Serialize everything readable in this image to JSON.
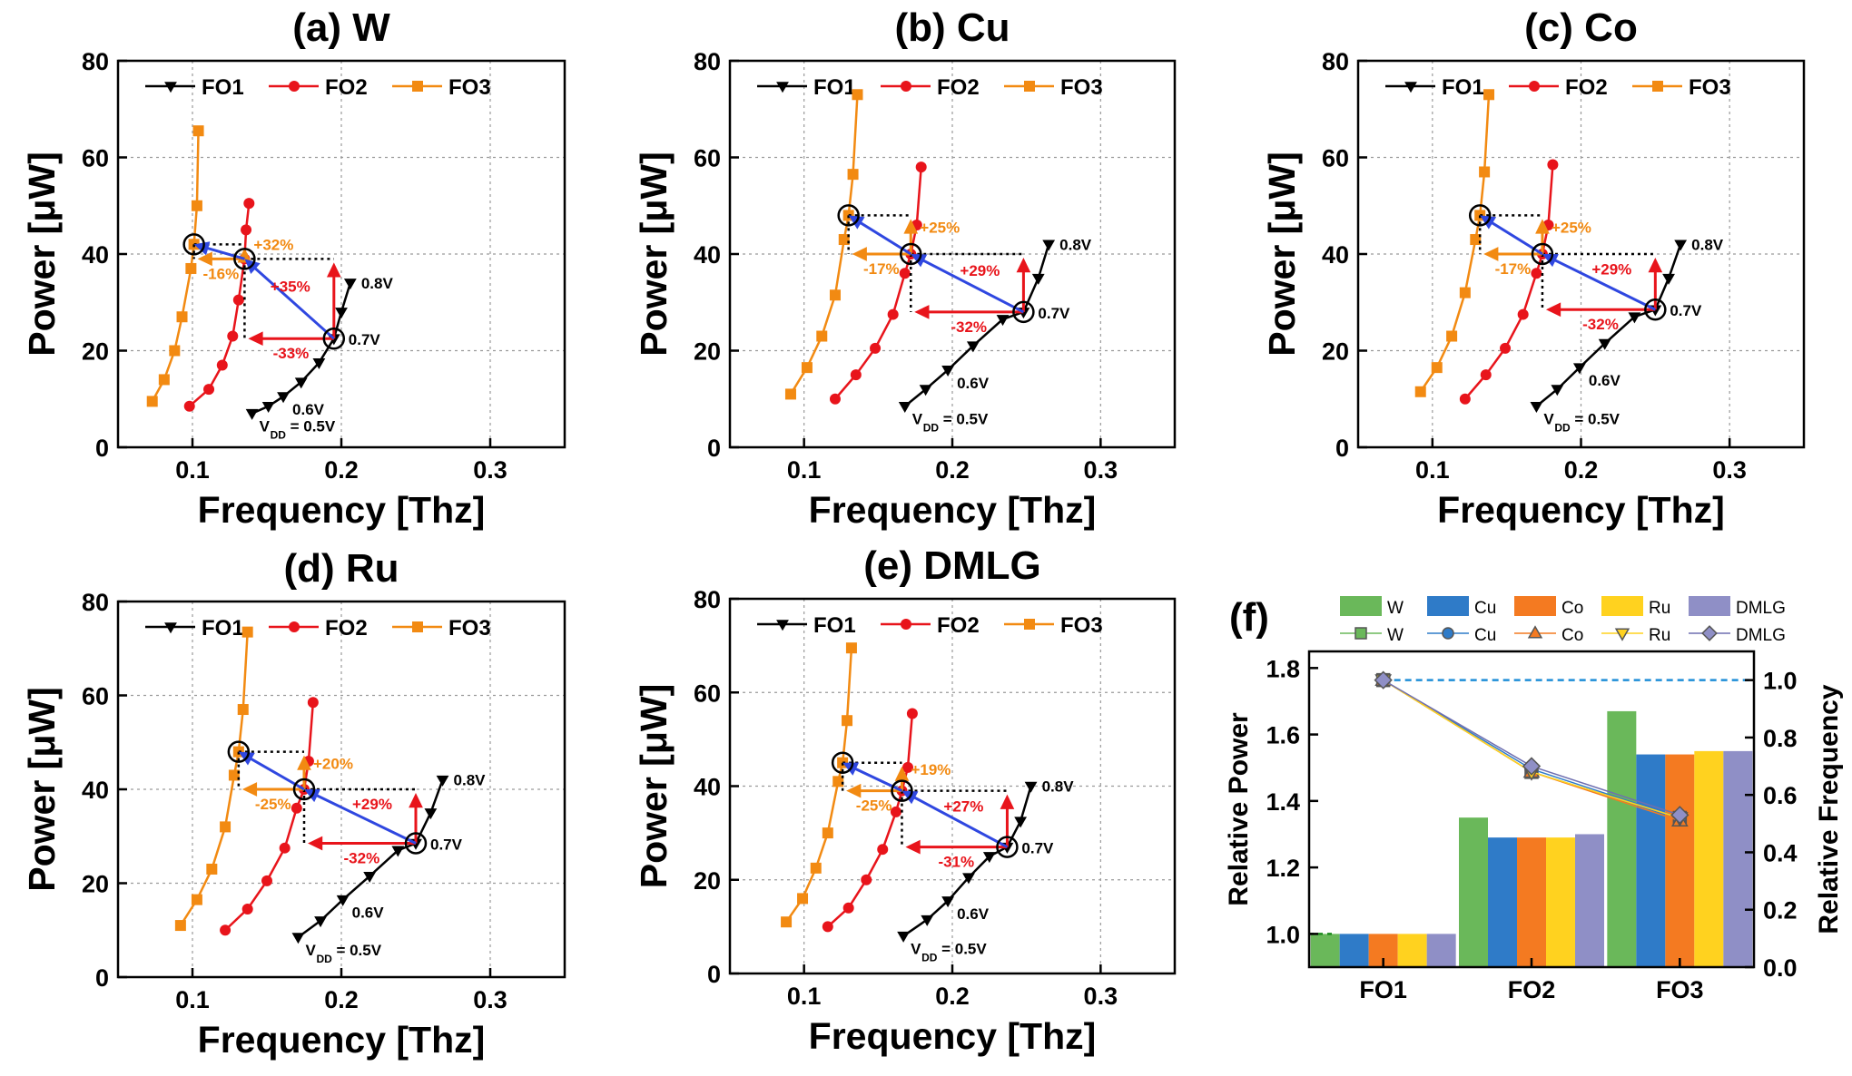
{
  "chart_data": [
    {
      "panel": "a",
      "type": "line",
      "title": "(a) W",
      "xlabel": "Frequency [Thz]",
      "ylabel": "Power [μW]",
      "xlim": [
        0.05,
        0.35
      ],
      "ylim": [
        0,
        80
      ],
      "xticks": [
        "0.1",
        "0.2",
        "0.3"
      ],
      "yticks": [
        "0",
        "20",
        "40",
        "60",
        "80"
      ],
      "grid": true,
      "legend": "top",
      "series": [
        {
          "name": "FO1",
          "color": "#000000",
          "marker": "triangle-down",
          "x": [
            0.14,
            0.151,
            0.161,
            0.173,
            0.185,
            0.195,
            0.2,
            0.206
          ],
          "y": [
            7.0,
            8.5,
            10.5,
            13.5,
            17.5,
            22.5,
            28.0,
            34.0
          ]
        },
        {
          "name": "FO2",
          "color": "#e8141b",
          "marker": "circle",
          "x": [
            0.098,
            0.111,
            0.12,
            0.127,
            0.131,
            0.135,
            0.136,
            0.138
          ],
          "y": [
            8.5,
            12.0,
            17.0,
            23.0,
            30.5,
            39.0,
            45.0,
            50.5
          ]
        },
        {
          "name": "FO3",
          "color": "#f28a12",
          "marker": "square",
          "x": [
            0.073,
            0.081,
            0.088,
            0.093,
            0.099,
            0.101,
            0.103,
            0.104
          ],
          "y": [
            9.5,
            14.0,
            20.0,
            27.0,
            37.0,
            42.0,
            50.0,
            65.5
          ]
        }
      ],
      "vdd_labels": [
        "V",
        "DD",
        " = 0.5V",
        "0.6V",
        "0.7V",
        "0.8V"
      ],
      "annotations": [
        {
          "text": "+32%",
          "color": "#f28a12"
        },
        {
          "text": "+35%",
          "color": "#e8141b"
        },
        {
          "text": "-16%",
          "color": "#f28a12"
        },
        {
          "text": "-33%",
          "color": "#e8141b"
        }
      ]
    },
    {
      "panel": "b",
      "type": "line",
      "title": "(b) Cu",
      "xlabel": "Frequency [Thz]",
      "ylabel": "Power [μW]",
      "xlim": [
        0.05,
        0.35
      ],
      "ylim": [
        0,
        80
      ],
      "xticks": [
        "0.1",
        "0.2",
        "0.3"
      ],
      "yticks": [
        "0",
        "20",
        "40",
        "60",
        "80"
      ],
      "grid": true,
      "legend": "top",
      "series": [
        {
          "name": "FO1",
          "color": "#000000",
          "marker": "triangle-down",
          "x": [
            0.168,
            0.182,
            0.197,
            0.214,
            0.234,
            0.248,
            0.258,
            0.265
          ],
          "y": [
            8.5,
            12.0,
            16.0,
            21.0,
            26.5,
            28.0,
            35.0,
            42.0
          ]
        },
        {
          "name": "FO2",
          "color": "#e8141b",
          "marker": "circle",
          "x": [
            0.121,
            0.135,
            0.148,
            0.16,
            0.168,
            0.172,
            0.176,
            0.179
          ],
          "y": [
            10.0,
            15.0,
            20.5,
            27.5,
            36.0,
            40.0,
            46.0,
            58.0
          ]
        },
        {
          "name": "FO3",
          "color": "#f28a12",
          "marker": "square",
          "x": [
            0.091,
            0.102,
            0.112,
            0.121,
            0.127,
            0.13,
            0.133,
            0.136
          ],
          "y": [
            11.0,
            16.5,
            23.0,
            31.5,
            43.0,
            48.0,
            56.5,
            73.0
          ]
        }
      ],
      "vdd_labels": [
        "V",
        "DD",
        " = 0.5V",
        "0.6V",
        "0.7V",
        "0.8V"
      ],
      "annotations": [
        {
          "text": "+25%",
          "color": "#f28a12"
        },
        {
          "text": "+29%",
          "color": "#e8141b"
        },
        {
          "text": "-17%",
          "color": "#f28a12"
        },
        {
          "text": "-32%",
          "color": "#e8141b"
        }
      ]
    },
    {
      "panel": "c",
      "type": "line",
      "title": "(c) Co",
      "xlabel": "Frequency [Thz]",
      "ylabel": "Power [μW]",
      "xlim": [
        0.05,
        0.35
      ],
      "ylim": [
        0,
        80
      ],
      "xticks": [
        "0.1",
        "0.2",
        "0.3"
      ],
      "yticks": [
        "0",
        "20",
        "40",
        "60",
        "80"
      ],
      "grid": true,
      "legend": "top",
      "series": [
        {
          "name": "FO1",
          "color": "#000000",
          "marker": "triangle-down",
          "x": [
            0.17,
            0.184,
            0.199,
            0.216,
            0.236,
            0.25,
            0.259,
            0.267
          ],
          "y": [
            8.5,
            12.0,
            16.5,
            21.5,
            27.0,
            28.5,
            35.0,
            42.0
          ]
        },
        {
          "name": "FO2",
          "color": "#e8141b",
          "marker": "circle",
          "x": [
            0.122,
            0.136,
            0.149,
            0.161,
            0.17,
            0.174,
            0.178,
            0.181
          ],
          "y": [
            10.0,
            15.0,
            20.5,
            27.5,
            36.0,
            40.0,
            46.0,
            58.5
          ]
        },
        {
          "name": "FO3",
          "color": "#f28a12",
          "marker": "square",
          "x": [
            0.092,
            0.103,
            0.113,
            0.122,
            0.129,
            0.132,
            0.135,
            0.138
          ],
          "y": [
            11.5,
            16.5,
            23.0,
            32.0,
            43.0,
            48.0,
            57.0,
            73.0
          ]
        }
      ],
      "vdd_labels": [
        "V",
        "DD",
        " = 0.5V",
        "0.6V",
        "0.7V",
        "0.8V"
      ],
      "annotations": [
        {
          "text": "+25%",
          "color": "#f28a12"
        },
        {
          "text": "+29%",
          "color": "#e8141b"
        },
        {
          "text": "-17%",
          "color": "#f28a12"
        },
        {
          "text": "-32%",
          "color": "#e8141b"
        }
      ]
    },
    {
      "panel": "d",
      "type": "line",
      "title": "(d) Ru",
      "xlabel": "Frequency [Thz]",
      "ylabel": "Power [μW]",
      "xlim": [
        0.05,
        0.35
      ],
      "ylim": [
        0,
        80
      ],
      "xticks": [
        "0.1",
        "0.2",
        "0.3"
      ],
      "yticks": [
        "0",
        "20",
        "40",
        "60",
        "80"
      ],
      "grid": true,
      "legend": "top",
      "series": [
        {
          "name": "FO1",
          "color": "#000000",
          "marker": "triangle-down",
          "x": [
            0.171,
            0.186,
            0.201,
            0.219,
            0.238,
            0.25,
            0.26,
            0.268
          ],
          "y": [
            8.5,
            12.0,
            16.5,
            21.5,
            27.0,
            28.5,
            35.0,
            42.0
          ]
        },
        {
          "name": "FO2",
          "color": "#e8141b",
          "marker": "circle",
          "x": [
            0.122,
            0.137,
            0.15,
            0.162,
            0.17,
            0.175,
            0.178,
            0.181
          ],
          "y": [
            10.0,
            14.5,
            20.5,
            27.5,
            36.0,
            40.0,
            46.0,
            58.5
          ]
        },
        {
          "name": "FO3",
          "color": "#f28a12",
          "marker": "square",
          "x": [
            0.092,
            0.103,
            0.113,
            0.122,
            0.128,
            0.131,
            0.134,
            0.137
          ],
          "y": [
            11.0,
            16.5,
            23.0,
            32.0,
            43.0,
            48.0,
            57.0,
            73.5
          ]
        }
      ],
      "vdd_labels": [
        "V",
        "DD",
        " = 0.5V",
        "0.6V",
        "0.7V",
        "0.8V"
      ],
      "annotations": [
        {
          "text": "+20%",
          "color": "#f28a12"
        },
        {
          "text": "+29%",
          "color": "#e8141b"
        },
        {
          "text": "-25%",
          "color": "#f28a12"
        },
        {
          "text": "-32%",
          "color": "#e8141b"
        }
      ]
    },
    {
      "panel": "e",
      "type": "line",
      "title": "(e) DMLG",
      "xlabel": "Frequency [Thz]",
      "ylabel": "Power [μW]",
      "xlim": [
        0.05,
        0.35
      ],
      "ylim": [
        0,
        80
      ],
      "xticks": [
        "0.1",
        "0.2",
        "0.3"
      ],
      "yticks": [
        "0",
        "20",
        "40",
        "60",
        "80"
      ],
      "grid": true,
      "legend": "top",
      "series": [
        {
          "name": "FO1",
          "color": "#000000",
          "marker": "triangle-down",
          "x": [
            0.167,
            0.183,
            0.197,
            0.211,
            0.225,
            0.237,
            0.246,
            0.253
          ],
          "y": [
            8.0,
            11.5,
            15.5,
            20.5,
            25.0,
            27.0,
            32.5,
            40.0
          ]
        },
        {
          "name": "FO2",
          "color": "#e8141b",
          "marker": "circle",
          "x": [
            0.116,
            0.13,
            0.142,
            0.153,
            0.162,
            0.166,
            0.17,
            0.173
          ],
          "y": [
            10.0,
            14.0,
            20.0,
            26.5,
            34.5,
            39.0,
            44.0,
            55.5
          ]
        },
        {
          "name": "FO3",
          "color": "#f28a12",
          "marker": "square",
          "x": [
            0.088,
            0.099,
            0.108,
            0.116,
            0.123,
            0.126,
            0.129,
            0.132
          ],
          "y": [
            11.0,
            16.0,
            22.5,
            30.0,
            41.0,
            45.0,
            54.0,
            69.5
          ]
        }
      ],
      "vdd_labels": [
        "V",
        "DD",
        " = 0.5V",
        "0.6V",
        "0.7V",
        "0.8V"
      ],
      "annotations": [
        {
          "text": "+19%",
          "color": "#f28a12"
        },
        {
          "text": "+27%",
          "color": "#e8141b"
        },
        {
          "text": "-25%",
          "color": "#f28a12"
        },
        {
          "text": "-31%",
          "color": "#e8141b"
        }
      ]
    },
    {
      "panel": "f",
      "type": "bar",
      "title": "(f)",
      "ylabel": "Relative Power",
      "y2label": "Relative Frequency",
      "categories": [
        "FO1",
        "FO2",
        "FO3"
      ],
      "ylim": [
        0.9,
        1.85
      ],
      "y2lim": [
        0.0,
        1.1
      ],
      "yticks": [
        "1.0",
        "1.2",
        "1.4",
        "1.6",
        "1.8"
      ],
      "y2ticks": [
        "0.0",
        "0.2",
        "0.4",
        "0.6",
        "0.8",
        "1.0"
      ],
      "legend": "top",
      "series": [
        {
          "name": "W",
          "color": "#6ab85a",
          "marker": "square",
          "power": [
            1.0,
            1.35,
            1.67
          ],
          "frequency": [
            1.0,
            0.68,
            0.52
          ]
        },
        {
          "name": "Cu",
          "color": "#2f7bc8",
          "marker": "circle",
          "power": [
            1.0,
            1.29,
            1.54
          ],
          "frequency": [
            1.0,
            0.69,
            0.52
          ]
        },
        {
          "name": "Co",
          "color": "#f47a21",
          "marker": "triangle-up",
          "power": [
            1.0,
            1.29,
            1.54
          ],
          "frequency": [
            1.0,
            0.68,
            0.51
          ]
        },
        {
          "name": "Ru",
          "color": "#ffd21f",
          "marker": "triangle-down",
          "power": [
            1.0,
            1.29,
            1.55
          ],
          "frequency": [
            1.0,
            0.68,
            0.52
          ]
        },
        {
          "name": "DMLG",
          "color": "#8f8fc6",
          "marker": "diamond",
          "power": [
            1.0,
            1.3,
            1.55
          ],
          "frequency": [
            1.0,
            0.7,
            0.53
          ]
        }
      ]
    }
  ]
}
